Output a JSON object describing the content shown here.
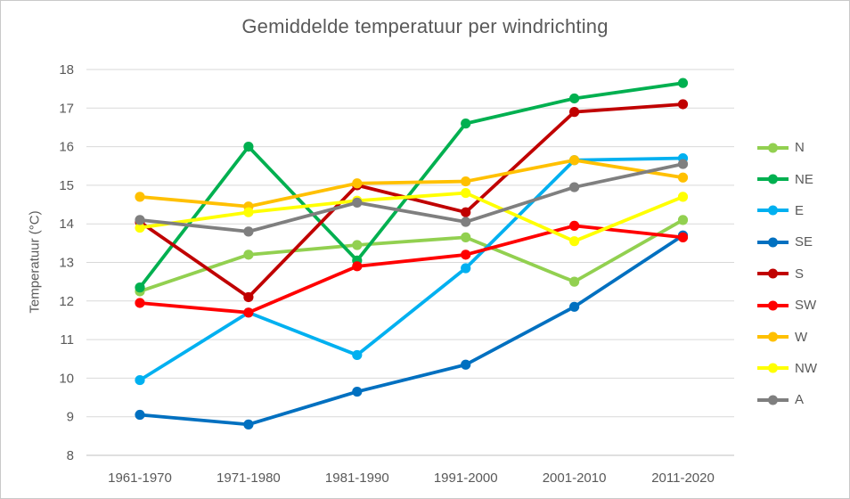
{
  "window": {
    "background": "#ffffff",
    "border_color": "#c9c9c9"
  },
  "chart_data": {
    "type": "line",
    "title": "Gemiddelde temperatuur per windrichting",
    "xlabel": "",
    "ylabel": "Temperatuur (°C)",
    "categories": [
      "1961-1970",
      "1971-1980",
      "1981-1990",
      "1991-2000",
      "2001-2010",
      "2011-2020"
    ],
    "ylim": [
      8,
      18
    ],
    "ytick_step": 1,
    "grid": true,
    "legend_position": "right",
    "text_color": "#595959",
    "gridline_color": "#d9d9d9",
    "axis_line_color": "#bfbfbf",
    "series": [
      {
        "name": "N",
        "color": "#92D050",
        "values": [
          12.25,
          13.2,
          13.45,
          13.65,
          12.5,
          14.1
        ]
      },
      {
        "name": "NE",
        "color": "#00B050",
        "values": [
          12.35,
          16.0,
          13.05,
          16.6,
          17.25,
          17.65
        ]
      },
      {
        "name": "E",
        "color": "#00B0F0",
        "values": [
          9.95,
          11.7,
          10.6,
          12.85,
          15.65,
          15.7
        ]
      },
      {
        "name": "SE",
        "color": "#0070C0",
        "values": [
          9.05,
          8.8,
          9.65,
          10.35,
          11.85,
          13.7
        ]
      },
      {
        "name": "S",
        "color": "#C00000",
        "values": [
          14.05,
          12.1,
          15.0,
          14.3,
          16.9,
          17.1
        ]
      },
      {
        "name": "SW",
        "color": "#FF0000",
        "values": [
          11.95,
          11.7,
          12.9,
          13.2,
          13.95,
          13.65
        ]
      },
      {
        "name": "W",
        "color": "#FFC000",
        "values": [
          14.7,
          14.45,
          15.05,
          15.1,
          15.65,
          15.2
        ]
      },
      {
        "name": "NW",
        "color": "#FFFF00",
        "values": [
          13.9,
          14.3,
          14.6,
          14.8,
          13.55,
          14.7
        ]
      },
      {
        "name": "A",
        "color": "#7F7F7F",
        "values": [
          14.1,
          13.8,
          14.55,
          14.05,
          14.95,
          15.55
        ]
      }
    ]
  }
}
